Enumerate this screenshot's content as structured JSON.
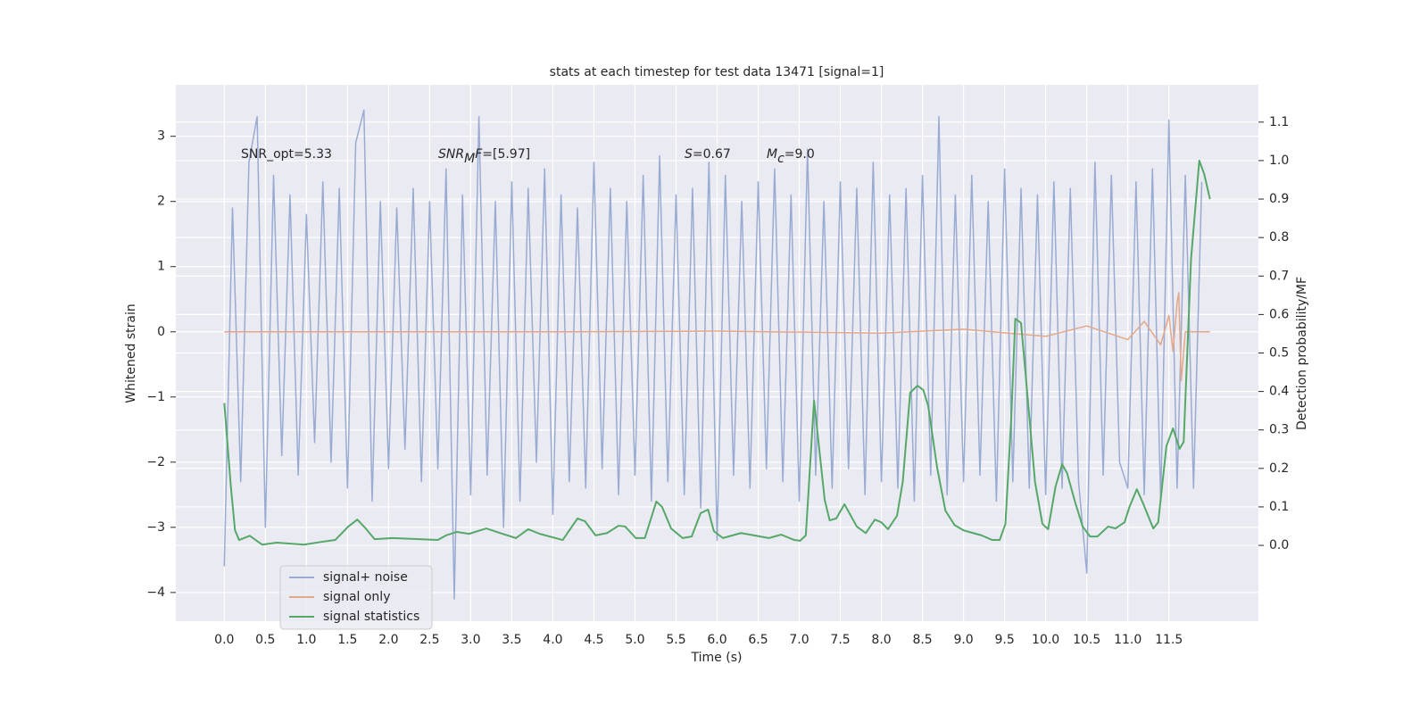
{
  "chart_data": {
    "type": "line",
    "title": "stats at each timestep for test data 13471 [signal=1]",
    "x_label": "Time (s)",
    "y_label": "Whitened strain",
    "y2_label": "Detection probability/MF",
    "xlim": [
      -0.59,
      12.59
    ],
    "ylim": [
      -4.44,
      3.79
    ],
    "y2lim": [
      -0.197,
      1.197
    ],
    "xticks": [
      {
        "value": 0,
        "label": "0.0"
      },
      {
        "value": 0.5,
        "label": "0.5"
      },
      {
        "value": 1,
        "label": "1.0"
      },
      {
        "value": 1.5,
        "label": "1.5"
      },
      {
        "value": 2,
        "label": "2.0"
      },
      {
        "value": 2.5,
        "label": "2.5"
      },
      {
        "value": 3,
        "label": "3.0"
      },
      {
        "value": 3.5,
        "label": "3.5"
      },
      {
        "value": 4,
        "label": "4.0"
      },
      {
        "value": 4.5,
        "label": "4.5"
      },
      {
        "value": 5,
        "label": "5.0"
      },
      {
        "value": 5.5,
        "label": "5.5"
      },
      {
        "value": 6,
        "label": "6.0"
      },
      {
        "value": 6.5,
        "label": "6.5"
      },
      {
        "value": 7,
        "label": "7.0"
      },
      {
        "value": 7.5,
        "label": "7.5"
      },
      {
        "value": 8,
        "label": "8.0"
      },
      {
        "value": 8.5,
        "label": "8.5"
      },
      {
        "value": 9,
        "label": "9.0"
      },
      {
        "value": 9.5,
        "label": "9.5"
      },
      {
        "value": 10,
        "label": "10.0"
      },
      {
        "value": 10.5,
        "label": "10.5"
      },
      {
        "value": 11,
        "label": "11.0"
      },
      {
        "value": 11.5,
        "label": "11.5"
      }
    ],
    "yticks": [
      {
        "value": -4,
        "label": "−4"
      },
      {
        "value": -3,
        "label": "−3"
      },
      {
        "value": -2,
        "label": "−2"
      },
      {
        "value": -1,
        "label": "−1"
      },
      0,
      1,
      2,
      3
    ],
    "y2ticks": [
      {
        "value": 0,
        "label": "0.0"
      },
      {
        "value": 0.1,
        "label": "0.1"
      },
      {
        "value": 0.2,
        "label": "0.2"
      },
      {
        "value": 0.3,
        "label": "0.3"
      },
      {
        "value": 0.4,
        "label": "0.4"
      },
      {
        "value": 0.5,
        "label": "0.5"
      },
      {
        "value": 0.6,
        "label": "0.6"
      },
      {
        "value": 0.7,
        "label": "0.7"
      },
      {
        "value": 0.8,
        "label": "0.8"
      },
      {
        "value": 0.9,
        "label": "0.9"
      },
      {
        "value": 1,
        "label": "1.0"
      },
      {
        "value": 1.1,
        "label": "1.1"
      }
    ],
    "grid": true,
    "legend_loc": "lower left",
    "annotations": [
      [
        {
          "text": "SNR_opt=5.33",
          "style": "normal"
        }
      ],
      [
        {
          "text": "SNR",
          "style": "italic"
        },
        {
          "text": "M",
          "style": "sub"
        },
        {
          "text": "F",
          "style": "italic"
        },
        {
          "text": "=[5.97]",
          "style": "normal"
        }
      ],
      [
        {
          "text": "S",
          "style": "italic"
        },
        {
          "text": "=0.67",
          "style": "normal"
        }
      ],
      [
        {
          "text": "M",
          "style": "italic"
        },
        {
          "text": "c",
          "style": "sub"
        },
        {
          "text": "=9.0",
          "style": "normal"
        }
      ]
    ],
    "series": [
      {
        "name": "signal+ noise",
        "color": "#9aabd2",
        "axis": "y",
        "x": [
          0,
          0.1,
          0.2,
          0.3,
          0.4,
          0.5,
          0.6,
          0.7,
          0.8,
          0.9,
          1,
          1.1,
          1.2,
          1.3,
          1.4,
          1.5,
          1.6,
          1.7,
          1.8,
          1.9,
          2,
          2.1,
          2.2,
          2.3,
          2.4,
          2.5,
          2.6,
          2.7,
          2.8,
          2.9,
          3,
          3.1,
          3.2,
          3.3,
          3.4,
          3.5,
          3.6,
          3.7,
          3.8,
          3.9,
          4,
          4.1,
          4.2,
          4.3,
          4.4,
          4.5,
          4.6,
          4.7,
          4.8,
          4.9,
          5,
          5.1,
          5.2,
          5.3,
          5.4,
          5.5,
          5.6,
          5.7,
          5.8,
          5.9,
          6,
          6.1,
          6.2,
          6.3,
          6.4,
          6.5,
          6.6,
          6.7,
          6.8,
          6.9,
          7,
          7.1,
          7.2,
          7.3,
          7.4,
          7.5,
          7.6,
          7.7,
          7.8,
          7.9,
          8,
          8.1,
          8.2,
          8.3,
          8.4,
          8.5,
          8.6,
          8.7,
          8.8,
          8.9,
          9,
          9.1,
          9.2,
          9.3,
          9.4,
          9.5,
          9.6,
          9.7,
          9.8,
          9.9,
          10,
          10.1,
          10.2,
          10.3,
          10.4,
          10.5,
          10.6,
          10.7,
          10.8,
          10.9,
          11,
          11.1,
          11.2,
          11.3,
          11.4,
          11.5,
          11.6,
          11.7,
          11.8,
          11.9
        ],
        "values": [
          -3.6,
          1.9,
          -2.3,
          2.6,
          3.3,
          -3.0,
          2.4,
          -1.9,
          2.1,
          -2.2,
          1.8,
          -1.7,
          2.3,
          -2.0,
          2.2,
          -2.4,
          2.9,
          3.4,
          -2.6,
          2.0,
          -2.1,
          1.9,
          -1.8,
          2.2,
          -2.3,
          2.0,
          -2.1,
          2.5,
          -4.1,
          2.1,
          -2.5,
          3.3,
          -2.2,
          2.0,
          -3.0,
          2.3,
          -2.6,
          2.2,
          -2.0,
          2.5,
          -2.8,
          2.1,
          -2.3,
          1.9,
          -2.4,
          2.6,
          -2.1,
          2.2,
          -2.5,
          2.0,
          -2.2,
          2.4,
          -2.6,
          2.7,
          -2.3,
          2.1,
          -2.5,
          2.2,
          -2.7,
          2.6,
          -3.2,
          2.4,
          -2.2,
          2.0,
          -2.4,
          2.3,
          -2.1,
          2.5,
          -2.3,
          2.1,
          -2.6,
          2.8,
          -2.2,
          2.0,
          -2.4,
          2.3,
          -2.1,
          2.2,
          -2.5,
          2.6,
          -2.3,
          2.1,
          -2.4,
          2.2,
          -2.6,
          2.4,
          -2.2,
          3.3,
          -2.5,
          2.1,
          -2.3,
          2.4,
          -2.2,
          2.0,
          -2.6,
          2.5,
          -2.3,
          2.2,
          -2.4,
          2.1,
          -2.5,
          2.3,
          -2.4,
          2.2,
          -2.3,
          -3.7,
          2.6,
          -2.2,
          2.4,
          -2.0,
          -2.4,
          2.3,
          -2.5,
          2.5,
          -2.6,
          3.25,
          -2.4,
          2.4,
          -2.4,
          2.3
        ]
      },
      {
        "name": "signal only",
        "color": "#e4a888",
        "axis": "y",
        "x": [
          0,
          2,
          4,
          6,
          8,
          9,
          10,
          10.5,
          11,
          11.2,
          11.4,
          11.5,
          11.55,
          11.6,
          11.62,
          11.65,
          11.7,
          12.0
        ],
        "values": [
          0,
          0,
          0,
          0.01,
          -0.02,
          0.04,
          -0.07,
          0.09,
          -0.12,
          0.16,
          -0.2,
          0.25,
          -0.3,
          0.45,
          0.6,
          -0.75,
          0,
          0
        ]
      },
      {
        "name": "signal statistics",
        "color": "#55a868",
        "axis": "y2",
        "x": [
          0,
          0.08,
          0.13,
          0.18,
          0.31,
          0.46,
          0.64,
          0.97,
          1.18,
          1.35,
          1.51,
          1.62,
          1.73,
          1.83,
          2.05,
          2.38,
          2.6,
          2.7,
          2.83,
          2.98,
          3.19,
          3.36,
          3.55,
          3.7,
          3.84,
          4.12,
          4.3,
          4.39,
          4.52,
          4.66,
          4.8,
          4.88,
          5.01,
          5.12,
          5.26,
          5.33,
          5.44,
          5.58,
          5.69,
          5.8,
          5.89,
          5.96,
          6.07,
          6.29,
          6.45,
          6.63,
          6.78,
          6.94,
          7.01,
          7.08,
          7.18,
          7.31,
          7.37,
          7.45,
          7.55,
          7.61,
          7.7,
          7.81,
          7.92,
          8.0,
          8.08,
          8.19,
          8.26,
          8.35,
          8.44,
          8.51,
          8.57,
          8.68,
          8.78,
          8.89,
          9.0,
          9.22,
          9.35,
          9.44,
          9.51,
          9.58,
          9.63,
          9.7,
          9.78,
          9.87,
          9.96,
          10.03,
          10.12,
          10.2,
          10.26,
          10.36,
          10.45,
          10.54,
          10.63,
          10.76,
          10.85,
          10.96,
          11.02,
          11.11,
          11.19,
          11.31,
          11.37,
          11.47,
          11.55,
          11.63,
          11.68,
          11.77,
          11.87,
          11.93,
          12.0
        ],
        "values": [
          0.37,
          0.153,
          0.04,
          0.014,
          0.025,
          0.002,
          0.007,
          0.002,
          0.009,
          0.014,
          0.049,
          0.067,
          0.042,
          0.016,
          0.019,
          0.016,
          0.014,
          0.026,
          0.035,
          0.03,
          0.044,
          0.032,
          0.019,
          0.042,
          0.03,
          0.014,
          0.07,
          0.063,
          0.026,
          0.032,
          0.051,
          0.049,
          0.019,
          0.019,
          0.114,
          0.1,
          0.044,
          0.019,
          0.023,
          0.084,
          0.093,
          0.037,
          0.019,
          0.032,
          0.026,
          0.019,
          0.028,
          0.014,
          0.012,
          0.026,
          0.376,
          0.118,
          0.065,
          0.07,
          0.107,
          0.084,
          0.049,
          0.032,
          0.067,
          0.06,
          0.042,
          0.077,
          0.165,
          0.397,
          0.415,
          0.404,
          0.362,
          0.2,
          0.09,
          0.053,
          0.039,
          0.026,
          0.014,
          0.014,
          0.056,
          0.327,
          0.589,
          0.578,
          0.385,
          0.165,
          0.056,
          0.042,
          0.153,
          0.211,
          0.188,
          0.111,
          0.049,
          0.023,
          0.023,
          0.049,
          0.044,
          0.06,
          0.1,
          0.146,
          0.107,
          0.044,
          0.06,
          0.258,
          0.304,
          0.251,
          0.269,
          0.745,
          1.0,
          0.965,
          0.9
        ]
      }
    ]
  }
}
